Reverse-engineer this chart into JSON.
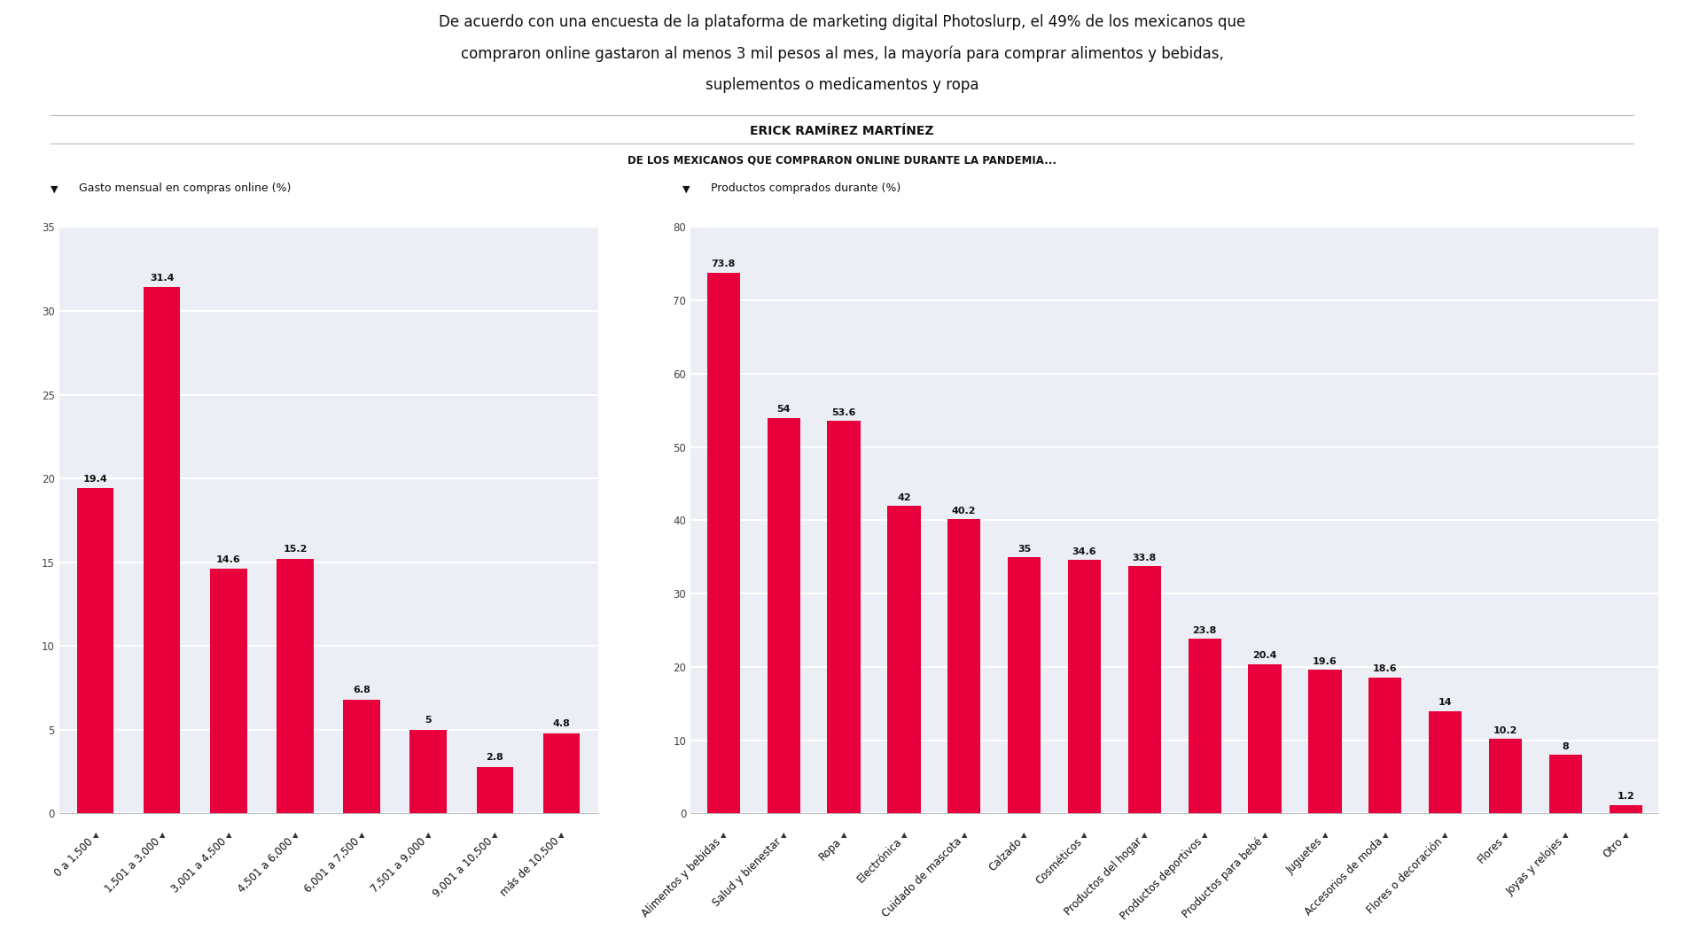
{
  "title_line1": "De acuerdo con una encuesta de la plataforma de marketing digital Photoslurp, el 49% de los mexicanos que",
  "title_line2": "compraron online gastaron al menos 3 mil pesos al mes, la mayoría para comprar alimentos y bebidas,",
  "title_line3": "suplementos o medicamentos y ropa",
  "author": "ERICK RAMÍREZ MARTÍNEZ",
  "section_title": "DE LOS MEXICANOS QUE COMPRARON ONLINE DURANTE LA PANDEMIA...",
  "left_subtitle": "Gasto mensual en compras online (%)",
  "left_categories": [
    "0 a 1,500",
    "1,501 a 3,000",
    "3,001 a 4,500",
    "4,501 a 6,000",
    "6,001 a 7,500",
    "7,501 a 9,000",
    "9,001 a 10,500",
    "más de 10,500"
  ],
  "left_values": [
    19.4,
    31.4,
    14.6,
    15.2,
    6.8,
    5.0,
    2.8,
    4.8
  ],
  "left_ylim": [
    0,
    35
  ],
  "left_yticks": [
    0,
    5,
    10,
    15,
    20,
    25,
    30,
    35
  ],
  "right_subtitle": "Productos comprados durante (%)",
  "right_categories": [
    "Alimentos y bebidas",
    "Salud y bienestar",
    "Ropa",
    "Electrónica",
    "Cuidado de mascota",
    "Calzado",
    "Cosméticos",
    "Productos del hogar",
    "Productos deportivos",
    "Productos para bebé",
    "Juguetes",
    "Accesorios de moda",
    "Flores o decoración",
    "Flores",
    "Joyas y relojes",
    "Otro"
  ],
  "right_values": [
    73.8,
    54.0,
    53.6,
    42.0,
    40.2,
    35.0,
    34.6,
    33.8,
    23.8,
    20.4,
    19.6,
    18.6,
    14.0,
    10.2,
    8.0,
    1.2
  ],
  "right_ylim": [
    0,
    80
  ],
  "right_yticks": [
    0,
    10,
    20,
    30,
    40,
    50,
    60,
    70,
    80
  ],
  "bar_color": "#E8003C",
  "background_color": "#ECEEF5",
  "fig_background": "#ffffff",
  "grid_color": "#ffffff",
  "tick_label_fontsize": 8.5,
  "value_label_fontsize": 8,
  "subtitle_fontsize": 9,
  "section_title_fontsize": 8.5
}
